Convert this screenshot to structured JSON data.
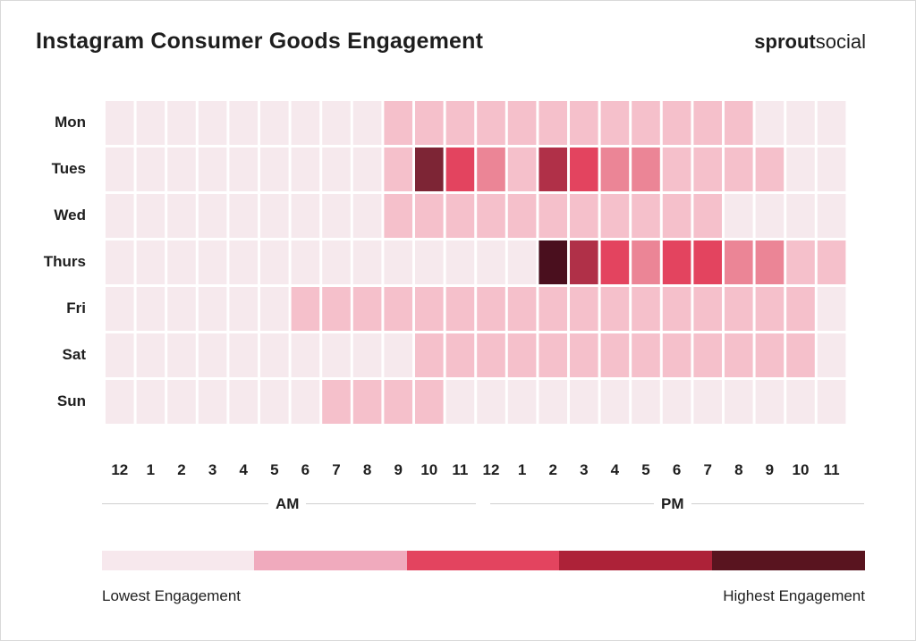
{
  "header": {
    "title": "Instagram Consumer Goods Engagement",
    "logo_bold": "sprout",
    "logo_light": "social"
  },
  "chart_data": {
    "type": "heatmap",
    "title": "Instagram Consumer Goods Engagement",
    "rows": [
      "Mon",
      "Tues",
      "Wed",
      "Thurs",
      "Fri",
      "Sat",
      "Sun"
    ],
    "columns": [
      "12",
      "1",
      "2",
      "3",
      "4",
      "5",
      "6",
      "7",
      "8",
      "9",
      "10",
      "11",
      "12",
      "1",
      "2",
      "3",
      "4",
      "5",
      "6",
      "7",
      "8",
      "9",
      "10",
      "11"
    ],
    "periods": [
      "AM",
      "PM"
    ],
    "levels": [
      [
        0,
        0,
        0,
        0,
        0,
        0,
        0,
        0,
        0,
        1,
        1,
        1,
        1,
        1,
        1,
        1,
        1,
        1,
        1,
        1,
        1,
        0,
        0,
        0
      ],
      [
        0,
        0,
        0,
        0,
        0,
        0,
        0,
        0,
        0,
        1,
        5,
        3,
        2,
        1,
        4,
        3,
        2,
        2,
        1,
        1,
        1,
        1,
        0,
        0
      ],
      [
        0,
        0,
        0,
        0,
        0,
        0,
        0,
        0,
        0,
        1,
        1,
        1,
        1,
        1,
        1,
        1,
        1,
        1,
        1,
        1,
        0,
        0,
        0,
        0
      ],
      [
        0,
        0,
        0,
        0,
        0,
        0,
        0,
        0,
        0,
        0,
        0,
        0,
        0,
        0,
        6,
        4,
        3,
        2,
        3,
        3,
        2,
        2,
        1,
        1
      ],
      [
        0,
        0,
        0,
        0,
        0,
        0,
        1,
        1,
        1,
        1,
        1,
        1,
        1,
        1,
        1,
        1,
        1,
        1,
        1,
        1,
        1,
        1,
        1,
        0
      ],
      [
        0,
        0,
        0,
        0,
        0,
        0,
        0,
        0,
        0,
        0,
        1,
        1,
        1,
        1,
        1,
        1,
        1,
        1,
        1,
        1,
        1,
        1,
        1,
        0
      ],
      [
        0,
        0,
        0,
        0,
        0,
        0,
        0,
        1,
        1,
        1,
        1,
        0,
        0,
        0,
        0,
        0,
        0,
        0,
        0,
        0,
        0,
        0,
        0,
        0
      ]
    ],
    "level_colors": [
      "#f6e9ed",
      "#f5c0cb",
      "#eb8596",
      "#e3445f",
      "#b03048",
      "#7d2535",
      "#4a0f1e"
    ],
    "legend_colors": [
      "#f7e8ed",
      "#f0aabd",
      "#e3445f",
      "#ad2238",
      "#59141f"
    ],
    "legend_low": "Lowest Engagement",
    "legend_high": "Highest Engagement"
  }
}
